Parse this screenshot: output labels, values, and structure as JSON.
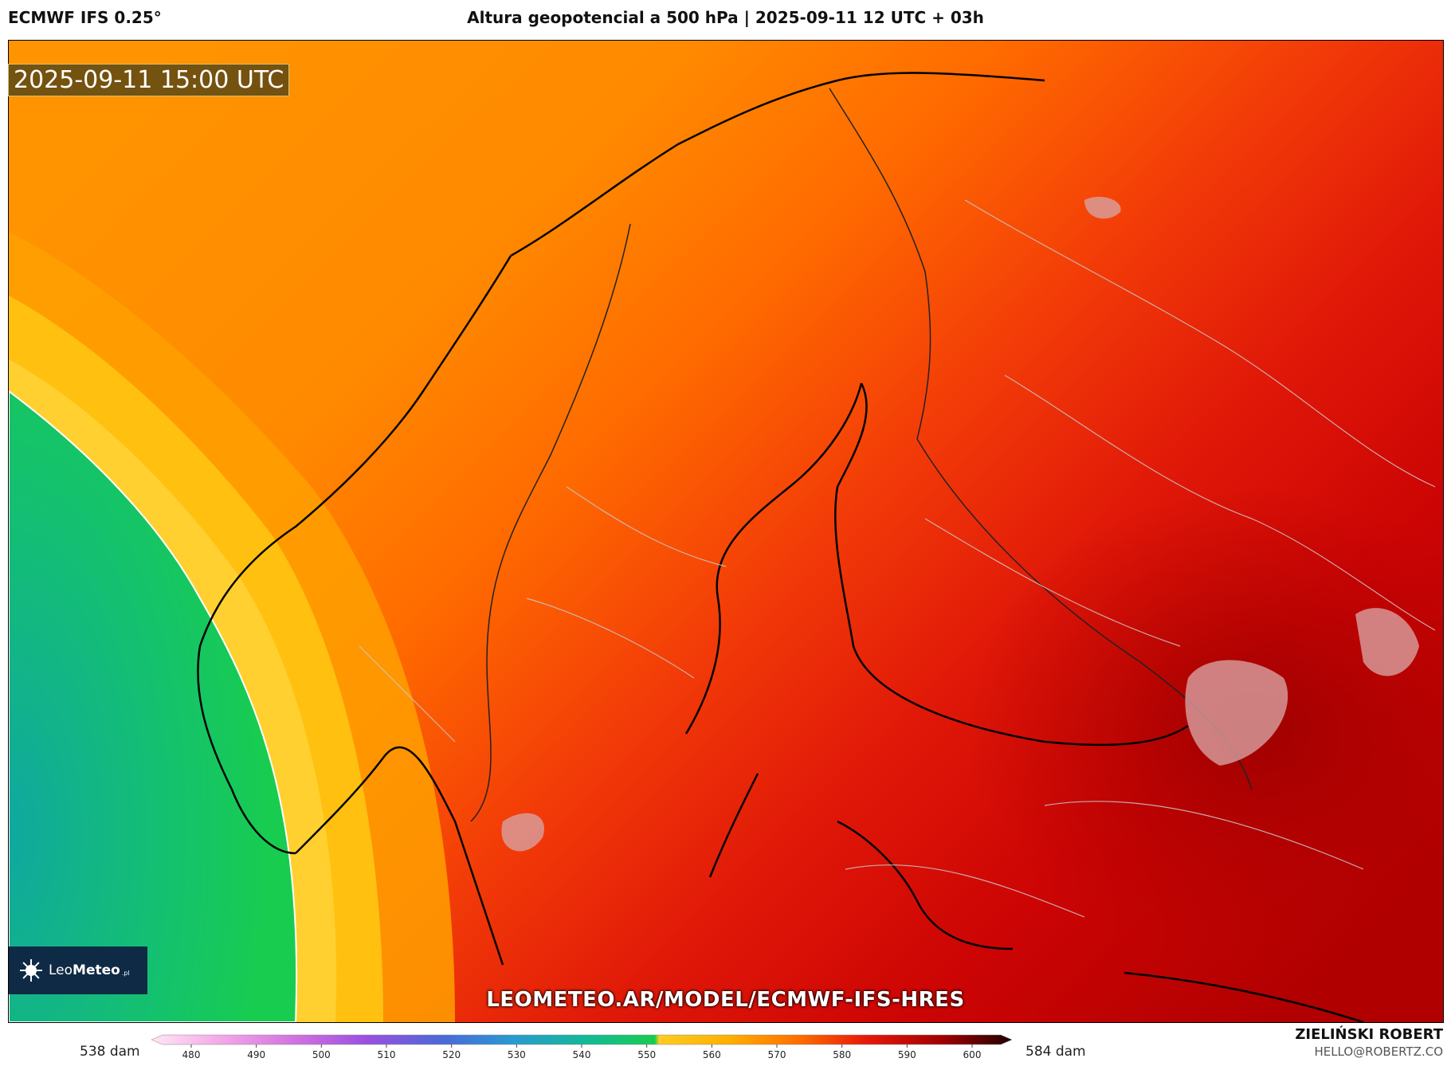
{
  "header": {
    "model": "ECMWF IFS 0.25°",
    "title": "Altura geopotencial a 500 hPa | 2025-09-11 12 UTC + 03h"
  },
  "map": {
    "valid_time": "2025-09-11 15:00 UTC",
    "watermark_url": "LEOMETEO.AR/MODEL/ECMWF-IFS-HRES",
    "region": "Scandinavia and Baltic",
    "field": "500 hPa geopotential height"
  },
  "logo": {
    "text_regular": "Leo",
    "text_bold": "Meteo",
    "suffix": ".pl"
  },
  "colorbar": {
    "min_label": "538 dam",
    "max_label": "584 dam",
    "ticks": [
      "480",
      "490",
      "500",
      "510",
      "520",
      "530",
      "540",
      "550",
      "560",
      "570",
      "580",
      "590",
      "600"
    ],
    "colors": {
      "480": "#ffe6f5",
      "490": "#f4a8e8",
      "500": "#d070e0",
      "510": "#9a50e0",
      "520": "#4a6ad8",
      "530": "#2a9ad0",
      "540": "#14b89a",
      "550": "#18cc50",
      "555": "#ffcc20",
      "560": "#ffb000",
      "570": "#ff7000",
      "580": "#e81808",
      "590": "#a00000",
      "600": "#200000"
    }
  },
  "author": {
    "name": "ZIELIŃSKI ROBERT",
    "email": "HELLO@ROBERTZ.CO"
  }
}
